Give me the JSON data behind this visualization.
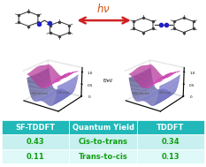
{
  "table_headers": [
    "SF-TDDFT",
    "Quantum Yield",
    "TDDFT"
  ],
  "table_rows": [
    [
      "0.43",
      "Cis-to-trans",
      "0.34"
    ],
    [
      "0.11",
      "Trans-to-cis",
      "0.13"
    ]
  ],
  "header_color": "#20b8b8",
  "row_color_1": "#c8f0f0",
  "row_color_2": "#dff8f8",
  "text_color_data": "#10a010",
  "surface_pink": "#e050c0",
  "surface_blue": "#8080d8",
  "arrow_color": "#d02020",
  "hv_color": "#d05010",
  "atom_bond_color": "#303030",
  "atom_n_color": "#2020c8",
  "atom_c_color": "#404040",
  "bg_color": "#ffffff",
  "figsize": [
    2.33,
    1.89
  ],
  "dpi": 100
}
